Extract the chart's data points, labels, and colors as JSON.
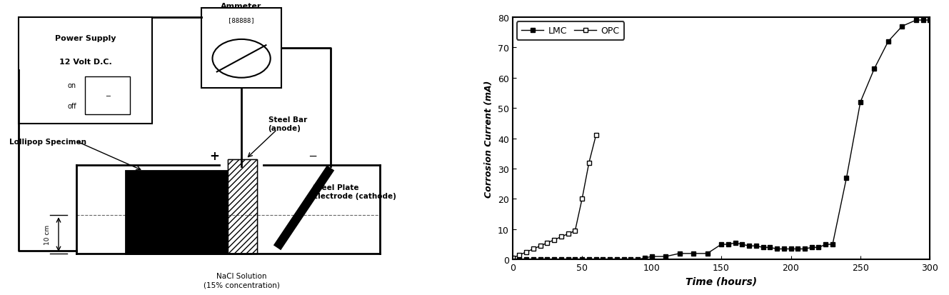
{
  "xlabel": "Time (hours)",
  "ylabel": "Corrosion Current (mA)",
  "xlim": [
    0,
    300
  ],
  "ylim": [
    0,
    80
  ],
  "xticks": [
    0,
    50,
    100,
    150,
    200,
    250,
    300
  ],
  "yticks": [
    0,
    10,
    20,
    30,
    40,
    50,
    60,
    70,
    80
  ],
  "lmc_x": [
    0,
    5,
    10,
    15,
    20,
    25,
    30,
    35,
    40,
    45,
    50,
    55,
    60,
    65,
    70,
    75,
    80,
    85,
    90,
    95,
    100,
    110,
    120,
    130,
    140,
    150,
    155,
    160,
    165,
    170,
    175,
    180,
    185,
    190,
    195,
    200,
    205,
    210,
    215,
    220,
    225,
    230,
    240,
    250,
    260,
    270,
    280,
    290,
    295,
    300
  ],
  "lmc_y": [
    0,
    0,
    0,
    0,
    0,
    0,
    0,
    0,
    0,
    0,
    0,
    0,
    0,
    0,
    0,
    0,
    0,
    0,
    0,
    0.5,
    1,
    1,
    2,
    2,
    2,
    5,
    5,
    5.5,
    5,
    4.5,
    4.5,
    4,
    4,
    3.5,
    3.5,
    3.5,
    3.5,
    3.5,
    4,
    4,
    5,
    5,
    27,
    52,
    63,
    72,
    77,
    79,
    79,
    79
  ],
  "opc_x": [
    0,
    5,
    10,
    15,
    20,
    25,
    30,
    35,
    40,
    45,
    50,
    55,
    60
  ],
  "opc_y": [
    0.5,
    1.5,
    2.5,
    3.5,
    4.5,
    5.5,
    6.5,
    7.5,
    8.5,
    9.5,
    20,
    32,
    41
  ],
  "legend_labels": [
    "LMC",
    "OPC"
  ],
  "background_color": "#ffffff",
  "figure_bg": "#ffffff"
}
